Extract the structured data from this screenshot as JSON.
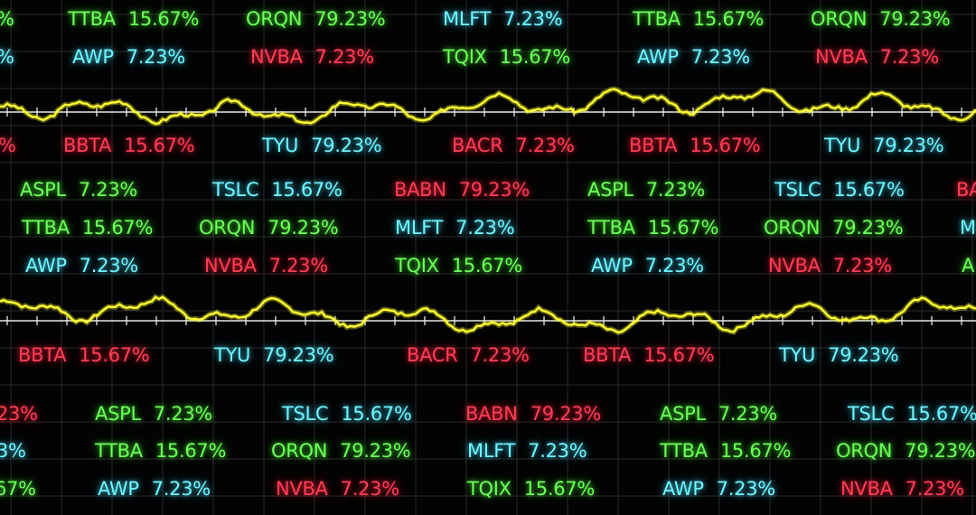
{
  "colors": {
    "background": "#030303",
    "grid": "#2a2a2a",
    "axis": "#e8e8e8",
    "line": "#ffff33",
    "green": "#6dff5a",
    "cyan": "#6ff5ff",
    "red": "#ff3d55"
  },
  "rows": [
    [
      {
        "sym": "TTBA",
        "pct": "15.67%",
        "color": "green"
      },
      {
        "sym": "ORQN",
        "pct": "79.23%",
        "color": "green"
      },
      {
        "sym": "MLFT",
        "pct": "7.23%",
        "color": "cyan"
      },
      {
        "sym": "TTBA",
        "pct": "15.67%",
        "color": "green"
      },
      {
        "sym": "ORQN",
        "pct": "79.23%",
        "color": "green"
      }
    ],
    [
      {
        "sym": "AWP",
        "pct": "7.23%",
        "color": "cyan"
      },
      {
        "sym": "NVBA",
        "pct": "7.23%",
        "color": "red"
      },
      {
        "sym": "TQIX",
        "pct": "15.67%",
        "color": "green"
      },
      {
        "sym": "AWP",
        "pct": "7.23%",
        "color": "cyan"
      },
      {
        "sym": "NVBA",
        "pct": "7.23%",
        "color": "red"
      }
    ],
    [
      {
        "sym": "BBTA",
        "pct": "15.67%",
        "color": "red"
      },
      {
        "sym": "TYU",
        "pct": "79.23%",
        "color": "cyan"
      },
      {
        "sym": "BACR",
        "pct": "7.23%",
        "color": "red"
      },
      {
        "sym": "BBTA",
        "pct": "15.67%",
        "color": "red"
      },
      {
        "sym": "TYU",
        "pct": "79.23%",
        "color": "cyan"
      }
    ],
    [
      {
        "sym": "ASPL",
        "pct": "7.23%",
        "color": "green"
      },
      {
        "sym": "TSLC",
        "pct": "15.67%",
        "color": "cyan"
      },
      {
        "sym": "BABN",
        "pct": "79.23%",
        "color": "red"
      },
      {
        "sym": "ASPL",
        "pct": "7.23%",
        "color": "green"
      },
      {
        "sym": "TSLC",
        "pct": "15.67%",
        "color": "cyan"
      }
    ],
    [
      {
        "sym": "TTBA",
        "pct": "15.67%",
        "color": "green"
      },
      {
        "sym": "ORQN",
        "pct": "79.23%",
        "color": "green"
      },
      {
        "sym": "MLFT",
        "pct": "7.23%",
        "color": "cyan"
      },
      {
        "sym": "TTBA",
        "pct": "15.67%",
        "color": "green"
      },
      {
        "sym": "ORQN",
        "pct": "79.23%",
        "color": "green"
      }
    ],
    [
      {
        "sym": "AWP",
        "pct": "7.23%",
        "color": "cyan"
      },
      {
        "sym": "NVBA",
        "pct": "7.23%",
        "color": "red"
      },
      {
        "sym": "TQIX",
        "pct": "15.67%",
        "color": "green"
      },
      {
        "sym": "AWP",
        "pct": "7.23%",
        "color": "cyan"
      },
      {
        "sym": "NVBA",
        "pct": "7.23%",
        "color": "red"
      }
    ],
    [
      {
        "sym": "BBTA",
        "pct": "15.67%",
        "color": "red"
      },
      {
        "sym": "TYU",
        "pct": "79.23%",
        "color": "cyan"
      },
      {
        "sym": "BACR",
        "pct": "7.23%",
        "color": "red"
      },
      {
        "sym": "BBTA",
        "pct": "15.67%",
        "color": "red"
      },
      {
        "sym": "TYU",
        "pct": "79.23%",
        "color": "cyan"
      }
    ],
    [
      {
        "sym": "ASPL",
        "pct": "7.23%",
        "color": "green"
      },
      {
        "sym": "TSLC",
        "pct": "15.67%",
        "color": "cyan"
      },
      {
        "sym": "BABN",
        "pct": "79.23%",
        "color": "red"
      },
      {
        "sym": "ASPL",
        "pct": "7.23%",
        "color": "green"
      },
      {
        "sym": "TSLC",
        "pct": "15.67%",
        "color": "cyan"
      }
    ],
    [
      {
        "sym": "TTBA",
        "pct": "15.67%",
        "color": "green"
      },
      {
        "sym": "ORQN",
        "pct": "79.23%",
        "color": "green"
      },
      {
        "sym": "MLFT",
        "pct": "7.23%",
        "color": "cyan"
      },
      {
        "sym": "TTBA",
        "pct": "15.67%",
        "color": "green"
      },
      {
        "sym": "ORQN",
        "pct": "79.23%",
        "color": "green"
      }
    ],
    [
      {
        "sym": "AWP",
        "pct": "7.23%",
        "color": "cyan"
      },
      {
        "sym": "NVBA",
        "pct": "7.23%",
        "color": "red"
      },
      {
        "sym": "TQIX",
        "pct": "15.67%",
        "color": "green"
      },
      {
        "sym": "AWP",
        "pct": "7.23%",
        "color": "cyan"
      },
      {
        "sym": "NVBA",
        "pct": "7.23%",
        "color": "red"
      }
    ]
  ],
  "edge_fragments": [
    {
      "text": "%",
      "color": "green"
    },
    {
      "text": "%",
      "color": "cyan"
    },
    {
      "text": "%",
      "color": "red"
    },
    {
      "text": "BA",
      "color": "red"
    },
    {
      "text": "M",
      "color": "cyan"
    },
    {
      "text": "A",
      "color": "green"
    },
    {
      "text": "23%",
      "color": "red"
    },
    {
      "text": "3%",
      "color": "cyan"
    },
    {
      "text": "67%",
      "color": "green"
    }
  ],
  "waves": [
    {
      "name": "upper-trend-line"
    },
    {
      "name": "lower-trend-line"
    }
  ]
}
